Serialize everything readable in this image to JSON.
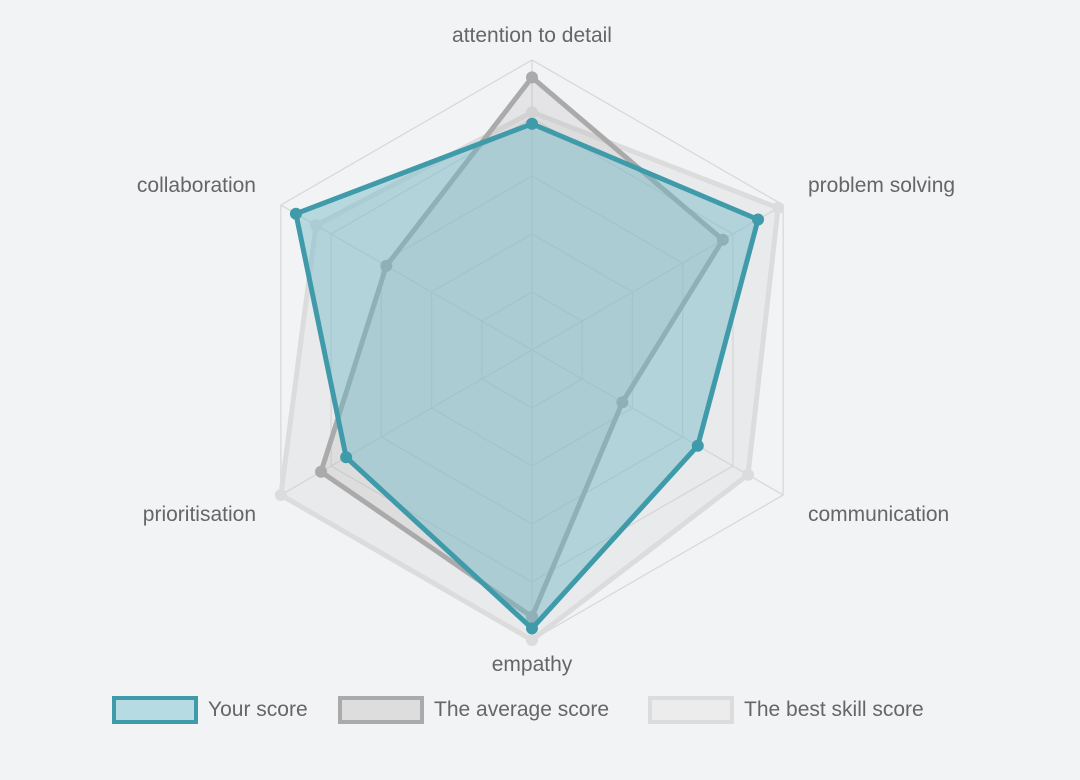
{
  "chart_data": {
    "type": "radar",
    "axes": [
      "attention to detail",
      "problem solving",
      "communication",
      "empathy",
      "prioritisation",
      "collaboration"
    ],
    "range": [
      0,
      5
    ],
    "grid_levels": 5,
    "legend_position": "bottom",
    "series": [
      {
        "name": "Your score",
        "values": [
          3.9,
          4.5,
          3.3,
          4.8,
          3.7,
          4.7
        ],
        "stroke": "#3f9aaa",
        "fill": "#6fb8c5",
        "fill_opacity": 0.45,
        "legend_fill": "#b7dbe2"
      },
      {
        "name": "The average score",
        "values": [
          4.7,
          3.8,
          1.8,
          4.6,
          4.2,
          2.9
        ],
        "stroke": "#aaaaaa",
        "fill": "#b0b0b0",
        "fill_opacity": 0.22,
        "legend_fill": "#dddddd"
      },
      {
        "name": "The best skill score",
        "values": [
          4.1,
          4.9,
          4.3,
          5.0,
          5.0,
          4.3
        ],
        "stroke": "#dcdcdc",
        "fill": "#d0d0d0",
        "fill_opacity": 0.25,
        "legend_fill": "#ececec"
      }
    ]
  }
}
